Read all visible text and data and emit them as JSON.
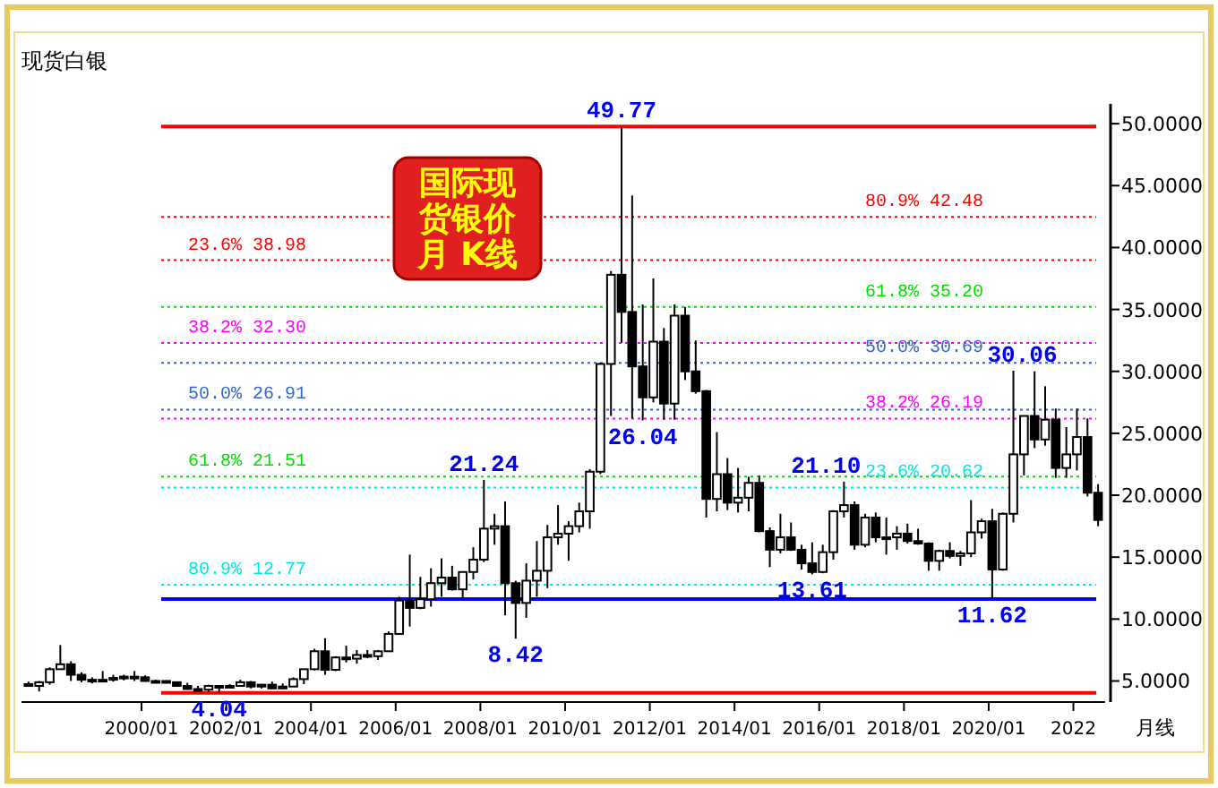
{
  "chart_data": {
    "type": "candlestick",
    "title": "国际现货银价月  K线",
    "subtitle": "现货白银",
    "xlabel": "月线",
    "x": [
      "1997-05",
      "1997-08",
      "1997-11",
      "1998-02",
      "1998-05",
      "1998-08",
      "1998-11",
      "1999-02",
      "1999-05",
      "1999-08",
      "1999-11",
      "2000-02",
      "2000-05",
      "2000-08",
      "2000-11",
      "2001-02",
      "2001-05",
      "2001-08",
      "2001-11",
      "2002-02",
      "2002-05",
      "2002-08",
      "2002-11",
      "2003-02",
      "2003-05",
      "2003-08",
      "2003-11",
      "2004-02",
      "2004-05",
      "2004-08",
      "2004-11",
      "2005-02",
      "2005-05",
      "2005-08",
      "2005-11",
      "2006-02",
      "2006-05",
      "2006-08",
      "2006-11",
      "2007-02",
      "2007-05",
      "2007-08",
      "2007-11",
      "2008-02",
      "2008-05",
      "2008-08",
      "2008-11",
      "2009-02",
      "2009-05",
      "2009-08",
      "2009-11",
      "2010-02",
      "2010-05",
      "2010-08",
      "2010-11",
      "2011-02",
      "2011-05",
      "2011-08",
      "2011-11",
      "2012-02",
      "2012-05",
      "2012-08",
      "2012-11",
      "2013-02",
      "2013-05",
      "2013-08",
      "2013-11",
      "2014-02",
      "2014-05",
      "2014-08",
      "2014-11",
      "2015-02",
      "2015-05",
      "2015-08",
      "2015-11",
      "2016-02",
      "2016-05",
      "2016-08",
      "2016-11",
      "2017-02",
      "2017-05",
      "2017-08",
      "2017-11",
      "2018-02",
      "2018-05",
      "2018-08",
      "2018-11",
      "2019-02",
      "2019-05",
      "2019-08",
      "2019-11",
      "2020-02",
      "2020-05",
      "2020-08",
      "2020-11",
      "2021-02",
      "2021-05",
      "2021-08",
      "2021-11",
      "2022-02",
      "2022-05",
      "2022-08"
    ],
    "ohlc": [
      [
        4.75,
        4.95,
        4.55,
        4.6
      ],
      [
        4.6,
        5.0,
        4.15,
        4.9
      ],
      [
        4.9,
        6.1,
        4.7,
        5.95
      ],
      [
        5.95,
        7.9,
        5.9,
        6.35
      ],
      [
        6.35,
        6.6,
        5.0,
        5.5
      ],
      [
        5.5,
        5.7,
        4.9,
        5.1
      ],
      [
        5.1,
        5.3,
        4.8,
        5.0
      ],
      [
        5.0,
        5.8,
        4.9,
        5.1
      ],
      [
        5.1,
        5.5,
        4.95,
        5.25
      ],
      [
        5.25,
        5.5,
        5.05,
        5.35
      ],
      [
        5.35,
        5.8,
        5.0,
        5.3
      ],
      [
        5.3,
        5.45,
        4.95,
        5.0
      ],
      [
        5.0,
        5.1,
        4.9,
        5.0
      ],
      [
        5.0,
        5.05,
        4.8,
        4.9
      ],
      [
        4.9,
        4.95,
        4.55,
        4.6
      ],
      [
        4.6,
        4.85,
        4.3,
        4.35
      ],
      [
        4.35,
        4.6,
        4.25,
        4.3
      ],
      [
        4.3,
        4.7,
        4.1,
        4.6
      ],
      [
        4.6,
        4.65,
        4.04,
        4.6
      ],
      [
        4.6,
        4.75,
        4.4,
        4.6
      ],
      [
        4.6,
        5.1,
        4.55,
        4.9
      ],
      [
        4.9,
        5.0,
        4.4,
        4.55
      ],
      [
        4.55,
        4.75,
        4.4,
        4.7
      ],
      [
        4.7,
        4.95,
        4.35,
        4.4
      ],
      [
        4.4,
        4.8,
        4.35,
        4.55
      ],
      [
        4.55,
        5.3,
        4.55,
        5.15
      ],
      [
        5.15,
        5.95,
        4.75,
        5.95
      ],
      [
        5.95,
        7.6,
        5.85,
        7.4
      ],
      [
        7.4,
        8.45,
        5.5,
        5.9
      ],
      [
        5.9,
        7.0,
        5.8,
        6.9
      ],
      [
        6.9,
        7.85,
        6.5,
        6.8
      ],
      [
        6.8,
        7.5,
        6.4,
        7.1
      ],
      [
        7.1,
        7.5,
        6.85,
        7.0
      ],
      [
        7.0,
        7.5,
        6.7,
        7.4
      ],
      [
        7.4,
        9.0,
        7.4,
        8.8
      ],
      [
        8.8,
        11.8,
        8.8,
        11.5
      ],
      [
        11.5,
        15.2,
        9.4,
        10.9
      ],
      [
        10.9,
        13.4,
        10.8,
        11.6
      ],
      [
        11.6,
        14.1,
        11.0,
        12.9
      ],
      [
        12.9,
        14.9,
        11.8,
        13.35
      ],
      [
        13.35,
        14.3,
        12.3,
        12.4
      ],
      [
        12.4,
        13.8,
        11.6,
        13.8
      ],
      [
        13.8,
        15.8,
        13.2,
        14.8
      ],
      [
        14.8,
        21.24,
        14.6,
        17.3
      ],
      [
        17.3,
        18.5,
        16.0,
        17.5
      ],
      [
        17.5,
        19.5,
        10.3,
        12.9
      ],
      [
        12.9,
        13.1,
        8.42,
        11.3
      ],
      [
        11.3,
        14.5,
        10.1,
        13.1
      ],
      [
        13.1,
        16.3,
        11.8,
        13.9
      ],
      [
        13.9,
        17.6,
        12.5,
        16.6
      ],
      [
        16.6,
        19.2,
        16.0,
        16.9
      ],
      [
        16.9,
        17.9,
        14.7,
        17.5
      ],
      [
        17.5,
        19.4,
        17.0,
        18.7
      ],
      [
        18.7,
        22.1,
        17.3,
        21.9
      ],
      [
        21.9,
        30.7,
        21.7,
        30.6
      ],
      [
        30.6,
        38.1,
        26.4,
        37.8
      ],
      [
        37.8,
        49.77,
        32.3,
        34.8
      ],
      [
        34.8,
        44.2,
        26.2,
        30.4
      ],
      [
        30.4,
        35.4,
        26.04,
        27.9
      ],
      [
        27.9,
        37.5,
        27.5,
        32.4
      ],
      [
        32.4,
        33.5,
        26.1,
        27.4
      ],
      [
        27.4,
        35.4,
        26.1,
        34.5
      ],
      [
        34.5,
        35.2,
        29.3,
        30.0
      ],
      [
        30.0,
        32.5,
        28.2,
        28.4
      ],
      [
        28.4,
        28.5,
        18.2,
        19.7
      ],
      [
        19.7,
        25.1,
        18.7,
        21.7
      ],
      [
        21.7,
        23.0,
        18.8,
        19.4
      ],
      [
        19.4,
        22.2,
        18.6,
        19.8
      ],
      [
        19.8,
        21.5,
        18.7,
        21.0
      ],
      [
        21.0,
        21.6,
        17.0,
        17.1
      ],
      [
        17.1,
        17.4,
        14.2,
        15.6
      ],
      [
        15.6,
        18.5,
        15.3,
        16.6
      ],
      [
        16.6,
        17.8,
        15.5,
        15.6
      ],
      [
        15.6,
        16.0,
        14.0,
        14.5
      ],
      [
        14.5,
        16.2,
        13.61,
        13.8
      ],
      [
        13.8,
        16.0,
        13.7,
        15.4
      ],
      [
        15.4,
        18.8,
        14.8,
        18.7
      ],
      [
        18.7,
        21.1,
        18.2,
        19.2
      ],
      [
        19.2,
        19.5,
        15.6,
        16.0
      ],
      [
        16.0,
        18.5,
        15.8,
        18.2
      ],
      [
        18.2,
        18.6,
        16.2,
        16.6
      ],
      [
        16.6,
        18.2,
        15.2,
        16.6
      ],
      [
        16.6,
        17.5,
        15.6,
        16.9
      ],
      [
        16.9,
        17.7,
        16.1,
        16.3
      ],
      [
        16.3,
        17.3,
        16.0,
        16.1
      ],
      [
        16.1,
        16.2,
        13.9,
        14.7
      ],
      [
        14.7,
        15.6,
        13.9,
        15.5
      ],
      [
        15.5,
        16.2,
        14.9,
        15.1
      ],
      [
        15.1,
        15.5,
        14.3,
        15.3
      ],
      [
        15.3,
        19.6,
        15.0,
        17.0
      ],
      [
        17.0,
        18.1,
        16.5,
        17.9
      ],
      [
        17.9,
        18.9,
        11.62,
        14.0
      ],
      [
        14.0,
        18.6,
        13.9,
        18.5
      ],
      [
        18.5,
        30.06,
        17.8,
        23.3
      ],
      [
        23.3,
        26.4,
        21.6,
        26.4
      ],
      [
        26.4,
        30.0,
        23.8,
        24.5
      ],
      [
        24.5,
        28.8,
        24.0,
        26.1
      ],
      [
        26.1,
        27.0,
        21.4,
        22.2
      ],
      [
        22.2,
        25.5,
        21.4,
        23.3
      ],
      [
        23.3,
        27.0,
        22.0,
        24.7
      ],
      [
        24.7,
        26.2,
        19.9,
        20.2
      ],
      [
        20.2,
        20.9,
        17.5,
        18.0
      ]
    ],
    "xlim": [
      "1997-03",
      "2022-10"
    ],
    "xticks": [
      {
        "value": "2000-01",
        "label": "2000/01"
      },
      {
        "value": "2002-01",
        "label": "2002/01"
      },
      {
        "value": "2004-01",
        "label": "2004/01"
      },
      {
        "value": "2006-01",
        "label": "2006/01"
      },
      {
        "value": "2008-01",
        "label": "2008/01"
      },
      {
        "value": "2010-01",
        "label": "2010/01"
      },
      {
        "value": "2012-01",
        "label": "2012/01"
      },
      {
        "value": "2014-01",
        "label": "2014/01"
      },
      {
        "value": "2016-01",
        "label": "2016/01"
      },
      {
        "value": "2018-01",
        "label": "2018/01"
      },
      {
        "value": "2020-01",
        "label": "2020/01"
      },
      {
        "value": "2022-01",
        "label": "2022"
      }
    ],
    "ylim": [
      3.3,
      51.6
    ],
    "yticks": [
      {
        "value": 5,
        "label": "5.0000"
      },
      {
        "value": 10,
        "label": "10.0000"
      },
      {
        "value": 15,
        "label": "15.0000"
      },
      {
        "value": 20,
        "label": "20.0000"
      },
      {
        "value": 25,
        "label": "25.0000"
      },
      {
        "value": 30,
        "label": "30.0000"
      },
      {
        "value": 35,
        "label": "35.0000"
      },
      {
        "value": 40,
        "label": "40.0000"
      },
      {
        "value": 45,
        "label": "45.0000"
      },
      {
        "value": 50,
        "label": "50.0000"
      }
    ],
    "ref_lines": [
      {
        "axis": "y",
        "value": 49.77,
        "color": "#ff0000",
        "line_style": "solid"
      },
      {
        "axis": "y",
        "value": 4.04,
        "color": "#ff0000",
        "line_style": "solid"
      },
      {
        "axis": "y",
        "value": 11.62,
        "color": "#0000ff",
        "line_style": "solid"
      },
      {
        "axis": "y",
        "value": 38.98,
        "label": "23.6%  38.98",
        "color": "#ff0000",
        "line_style": "dotted"
      },
      {
        "axis": "y",
        "value": 32.3,
        "label": "38.2%  32.30",
        "color": "#ff00ff",
        "line_style": "dotted"
      },
      {
        "axis": "y",
        "value": 26.91,
        "label": "50.0%  26.91",
        "color": "#3366cc",
        "line_style": "dotted"
      },
      {
        "axis": "y",
        "value": 21.51,
        "label": "61.8%  21.51",
        "color": "#00dd00",
        "line_style": "dotted"
      },
      {
        "axis": "y",
        "value": 12.77,
        "label": "80.9%  12.77",
        "color": "#00e5e5",
        "line_style": "dotted"
      },
      {
        "axis": "y",
        "value": 42.48,
        "label": "80.9%  42.48",
        "color": "#ff0000",
        "line_style": "dotted"
      },
      {
        "axis": "y",
        "value": 35.2,
        "label": "61.8%  35.20",
        "color": "#00dd00",
        "line_style": "dotted"
      },
      {
        "axis": "y",
        "value": 30.69,
        "label": "50.0%  30.69",
        "color": "#3366cc",
        "line_style": "dotted"
      },
      {
        "axis": "y",
        "value": 26.19,
        "label": "38.2%  26.19",
        "color": "#ff00ff",
        "line_style": "dotted"
      },
      {
        "axis": "y",
        "value": 20.62,
        "label": "23.6%  20.62",
        "color": "#00e5e5",
        "line_style": "dotted"
      }
    ],
    "annotations": [
      {
        "text": "49.77",
        "x": "2011-05",
        "y": 49.77
      },
      {
        "text": "4.04",
        "x": "2001-11",
        "y": 4.04
      },
      {
        "text": "21.24",
        "x": "2008-02",
        "y": 21.24
      },
      {
        "text": "8.42",
        "x": "2008-11",
        "y": 8.42
      },
      {
        "text": "26.04",
        "x": "2011-11",
        "y": 26.04
      },
      {
        "text": "21.10",
        "x": "2016-08",
        "y": 21.1
      },
      {
        "text": "13.61",
        "x": "2015-11",
        "y": 13.61
      },
      {
        "text": "11.62",
        "x": "2020-02",
        "y": 11.62
      },
      {
        "text": "30.06",
        "x": "2020-08",
        "y": 30.06
      }
    ]
  }
}
